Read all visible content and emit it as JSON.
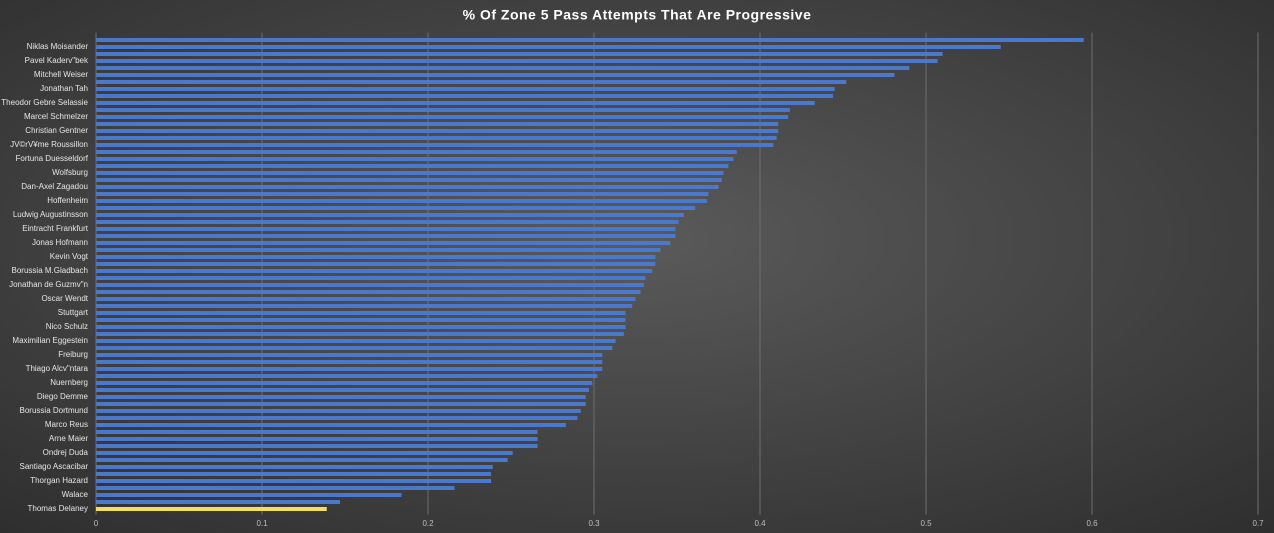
{
  "chart_data": {
    "type": "barh",
    "title": "% Of Zone 5 Pass Attempts That Are Progressive",
    "categories": [
      null,
      "Niklas Moisander",
      null,
      "Pavel Kaderv\"bek",
      null,
      "Mitchell Weiser",
      null,
      "Jonathan Tah",
      null,
      "Theodor Gebre Selassie",
      null,
      "Marcel Schmelzer",
      null,
      "Christian Gentner",
      null,
      "JV©rV¥me Roussillon",
      null,
      "Fortuna Duesseldorf",
      null,
      "Wolfsburg",
      null,
      "Dan-Axel Zagadou",
      null,
      "Hoffenheim",
      null,
      "Ludwig Augustinsson",
      null,
      "Eintracht Frankfurt",
      null,
      "Jonas Hofmann",
      null,
      "Kevin Vogt",
      null,
      "Borussia M.Gladbach",
      null,
      "Jonathan de Guzmv\"n",
      null,
      "Oscar Wendt",
      null,
      "Stuttgart",
      null,
      "Nico Schulz",
      null,
      "Maximilian Eggestein",
      null,
      "Freiburg",
      null,
      "Thiago Alcv\"ntara",
      null,
      "Nuernberg",
      null,
      "Diego Demme",
      null,
      "Borussia Dortmund",
      null,
      "Marco Reus",
      null,
      "Arne Maier",
      null,
      "Ondrej Duda",
      null,
      "Santiago Ascacibar",
      null,
      "Thorgan Hazard",
      null,
      "Walace",
      null,
      "Thomas Delaney"
    ],
    "values": [
      0.595,
      0.545,
      0.51,
      0.507,
      0.49,
      0.481,
      0.452,
      0.445,
      0.444,
      0.433,
      0.418,
      0.417,
      0.411,
      0.411,
      0.41,
      0.408,
      0.386,
      0.384,
      0.381,
      0.378,
      0.377,
      0.375,
      0.369,
      0.368,
      0.361,
      0.354,
      0.351,
      0.349,
      0.349,
      0.346,
      0.34,
      0.337,
      0.337,
      0.335,
      0.331,
      0.33,
      0.328,
      0.325,
      0.323,
      0.319,
      0.319,
      0.319,
      0.318,
      0.313,
      0.311,
      0.305,
      0.305,
      0.305,
      0.302,
      0.299,
      0.297,
      0.295,
      0.295,
      0.292,
      0.29,
      0.283,
      0.266,
      0.266,
      0.266,
      0.251,
      0.248,
      0.239,
      0.238,
      0.238,
      0.216,
      0.184,
      0.147,
      0.139
    ],
    "color": "#4a78cc",
    "highlight_index": 67,
    "highlight_color": "#f2df62",
    "xlim": [
      0,
      0.7
    ],
    "xticks": [
      0,
      0.1,
      0.2,
      0.3,
      0.4,
      0.5,
      0.6,
      0.7
    ],
    "grid": true
  }
}
